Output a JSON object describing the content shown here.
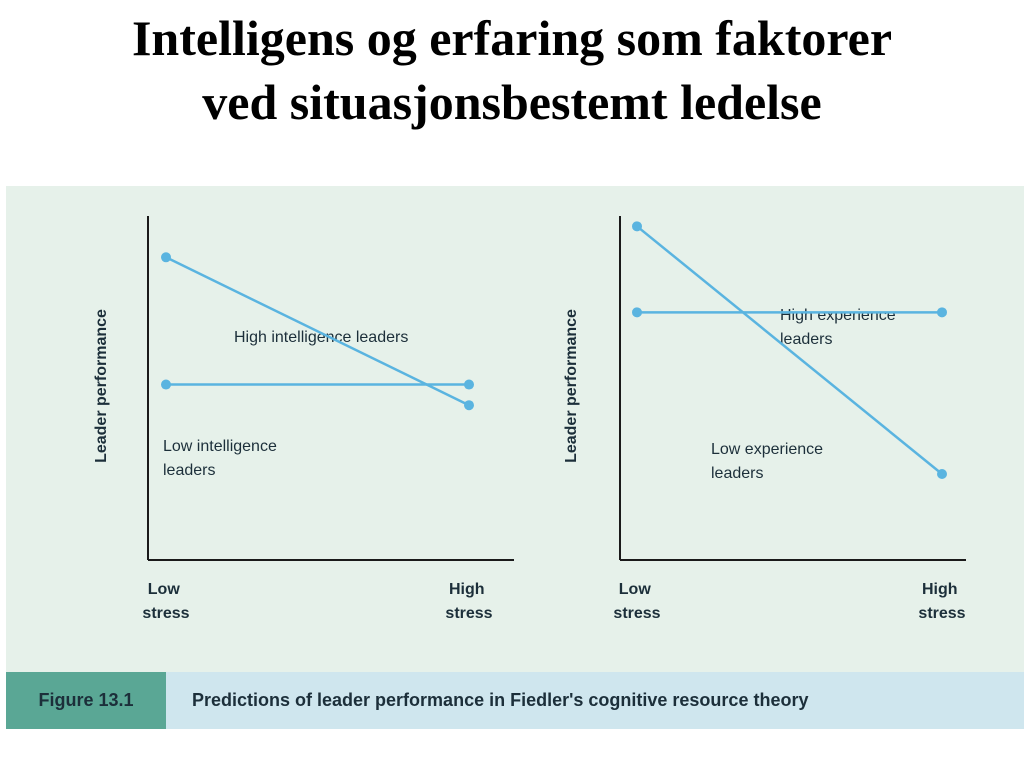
{
  "slide": {
    "title_line1": "Intelligens og erfaring som faktorer",
    "title_line2": "ved situasjonsbestemt ledelse"
  },
  "figure": {
    "label": "Figure 13.1",
    "caption": "Predictions of leader performance in Fiedler's cognitive resource theory"
  },
  "colors": {
    "line": "#5ab4e0",
    "axis": "#1a1a1a",
    "text": "#1c2f3a",
    "panel": "#e6f1ea",
    "caption_label_bg": "#5aa795",
    "caption_bg": "#cfe6ee"
  },
  "chart_data": [
    {
      "type": "line",
      "ylabel": "Leader performance",
      "categories": [
        "Low stress",
        "High stress"
      ],
      "series": [
        {
          "name": "High intelligence leaders",
          "values": [
            0.88,
            0.45
          ]
        },
        {
          "name": "Low intelligence leaders",
          "values": [
            0.51,
            0.51
          ]
        }
      ]
    },
    {
      "type": "line",
      "ylabel": "Leader performance",
      "categories": [
        "Low stress",
        "High stress"
      ],
      "series": [
        {
          "name": "High experience leaders",
          "values": [
            0.72,
            0.72
          ]
        },
        {
          "name": "Low experience leaders",
          "values": [
            0.97,
            0.25
          ]
        }
      ]
    }
  ]
}
